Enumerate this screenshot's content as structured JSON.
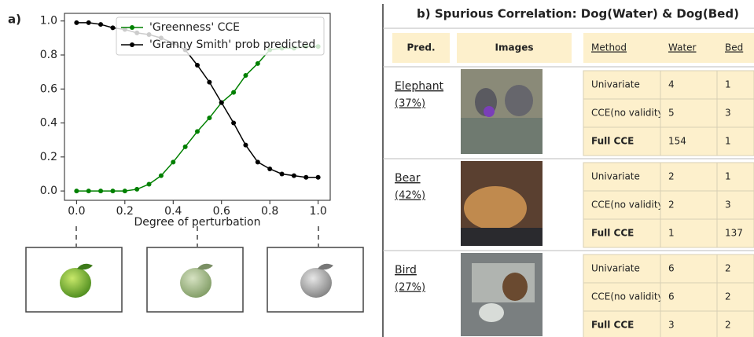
{
  "panel_label": "a)",
  "chart_data": {
    "type": "line",
    "xlabel": "Degree of perturbation",
    "x": [
      0,
      0.05,
      0.1,
      0.15,
      0.2,
      0.25,
      0.3,
      0.35,
      0.4,
      0.45,
      0.5,
      0.55,
      0.6,
      0.65,
      0.7,
      0.75,
      0.8,
      0.85,
      0.9,
      0.95,
      1.0
    ],
    "series": [
      {
        "name": "'Greenness' CCE",
        "color": "#008000",
        "values": [
          0,
          0,
          0,
          0,
          0,
          0.01,
          0.04,
          0.09,
          0.17,
          0.26,
          0.35,
          0.43,
          0.52,
          0.58,
          0.68,
          0.75,
          0.83,
          0.84,
          0.84,
          0.85,
          0.85
        ]
      },
      {
        "name": "'Granny Smith' prob predicted",
        "color": "#000000",
        "values": [
          0.99,
          0.99,
          0.98,
          0.96,
          0.95,
          0.93,
          0.92,
          0.9,
          0.87,
          0.83,
          0.74,
          0.64,
          0.52,
          0.4,
          0.27,
          0.17,
          0.13,
          0.1,
          0.09,
          0.08,
          0.08
        ]
      }
    ],
    "xlim": [
      -0.05,
      1.05
    ],
    "xticks": [
      {
        "value": 0,
        "label": "0.0"
      },
      0.2,
      0.4,
      0.6,
      0.8,
      {
        "value": 1,
        "label": "1.0"
      }
    ],
    "ylim": [
      -0.055,
      1.045
    ],
    "yticks": [
      {
        "value": 0,
        "label": "0.0"
      },
      0.2,
      0.4,
      0.6,
      0.8,
      {
        "value": 1,
        "label": "1.0"
      }
    ],
    "legend": "upper right"
  },
  "table": {
    "title": "b) Spurious Correlation: Dog(Water) & Dog(Bed)",
    "columns": [
      "Pred.",
      "Images",
      "Method",
      "Water",
      "Bed"
    ],
    "rows": [
      {
        "pred": "Elephant",
        "percent": "(37%)",
        "methods": [
          [
            "Univariate",
            4,
            1
          ],
          [
            "CCE(no validity)",
            5,
            3
          ],
          [
            "Full CCE",
            154,
            1
          ]
        ]
      },
      {
        "pred": "Bear",
        "percent": "(42%)",
        "methods": [
          [
            "Univariate",
            2,
            1
          ],
          [
            "CCE(no validity)",
            2,
            3
          ],
          [
            "Full CCE",
            1,
            137
          ]
        ]
      },
      {
        "pred": "Bird",
        "percent": "(27%)",
        "methods": [
          [
            "Univariate",
            6,
            2
          ],
          [
            "CCE(no validity)",
            6,
            2
          ],
          [
            "Full CCE",
            3,
            2
          ]
        ]
      }
    ]
  }
}
